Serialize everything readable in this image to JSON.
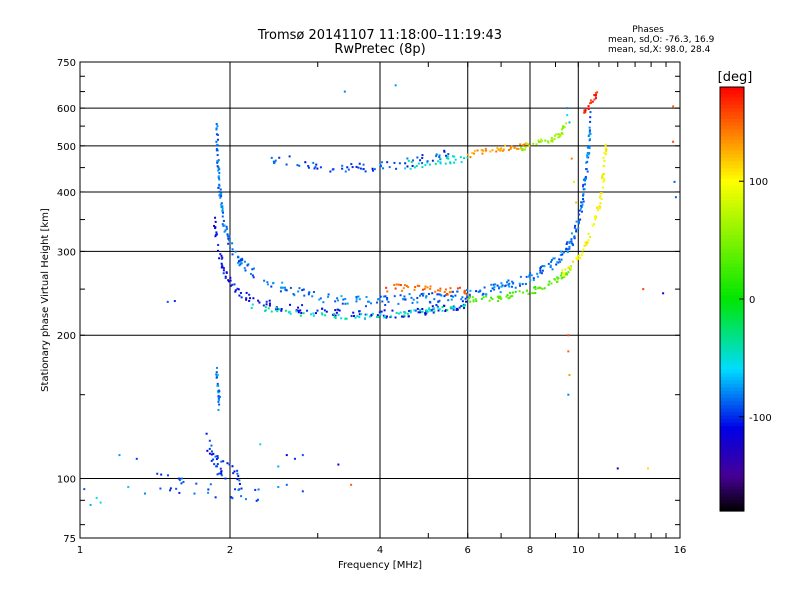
{
  "chart_data": {
    "type": "scatter",
    "title_line1": "Tromsø 20141107 11:18:00–11:19:43",
    "title_line2": "RwPretec (8p)",
    "info": {
      "heading": "Phases",
      "line1": "mean, sd,O: -76.3, 16.9",
      "line2": "mean, sd,X:  98.0, 28.4"
    },
    "xlabel": "Frequency [MHz]",
    "ylabel": "Stationary phase Virtual Height [km]",
    "x_scale": "log",
    "y_scale": "log",
    "xlim": [
      1,
      16
    ],
    "ylim": [
      75,
      750
    ],
    "x_ticks": [
      {
        "value": 1,
        "label": "1"
      },
      {
        "value": 2,
        "label": "2"
      },
      {
        "value": 4,
        "label": "4"
      },
      {
        "value": 6,
        "label": "6"
      },
      {
        "value": 8,
        "label": "8"
      },
      {
        "value": 10,
        "label": "10"
      },
      {
        "value": 16,
        "label": "16"
      }
    ],
    "x_grid": [
      2,
      4,
      6,
      8,
      10
    ],
    "y_ticks": [
      {
        "value": 75,
        "label": "75"
      },
      {
        "value": 100,
        "label": "100"
      },
      {
        "value": 200,
        "label": "200"
      },
      {
        "value": 300,
        "label": "300"
      },
      {
        "value": 400,
        "label": "400"
      },
      {
        "value": 500,
        "label": "500"
      },
      {
        "value": 600,
        "label": "600"
      },
      {
        "value": 750,
        "label": "750"
      }
    ],
    "y_grid": [
      100,
      200,
      300,
      400,
      500,
      600
    ],
    "colorbar": {
      "label": "[deg]",
      "range": [
        -180,
        180
      ],
      "ticks": [
        {
          "value": 100,
          "label": "100"
        },
        {
          "value": 0,
          "label": "0"
        },
        {
          "value": -100,
          "label": "-100"
        }
      ]
    },
    "traces": [
      {
        "name": "",
        "phase": -85,
        "spread_pct": 2.5,
        "density": 14,
        "points": [
          [
            1.88,
            560
          ],
          [
            1.89,
            470
          ],
          [
            1.9,
            420
          ],
          [
            1.92,
            380
          ],
          [
            1.95,
            340
          ],
          [
            2.0,
            310
          ],
          [
            2.1,
            285
          ],
          [
            2.3,
            265
          ],
          [
            2.6,
            250
          ],
          [
            3.0,
            240
          ],
          [
            3.5,
            236
          ],
          [
            4.0,
            236
          ],
          [
            4.5,
            238
          ],
          [
            5.0,
            240
          ],
          [
            5.5,
            242
          ],
          [
            6.0,
            244
          ],
          [
            6.5,
            247
          ],
          [
            7.0,
            252
          ],
          [
            7.6,
            259
          ],
          [
            8.2,
            268
          ],
          [
            8.8,
            280
          ],
          [
            9.3,
            295
          ],
          [
            9.7,
            315
          ],
          [
            10.0,
            345
          ],
          [
            10.2,
            385
          ],
          [
            10.35,
            430
          ],
          [
            10.5,
            490
          ],
          [
            10.6,
            580
          ]
        ]
      },
      {
        "name": "",
        "phase": -110,
        "spread_pct": 2.0,
        "density": 12,
        "points": [
          [
            1.86,
            350
          ],
          [
            1.9,
            300
          ],
          [
            1.95,
            270
          ],
          [
            2.05,
            250
          ],
          [
            2.2,
            238
          ],
          [
            2.5,
            230
          ],
          [
            3.0,
            225
          ],
          [
            3.5,
            221
          ],
          [
            4.0,
            221
          ],
          [
            4.5,
            223
          ],
          [
            5.0,
            226
          ],
          [
            5.5,
            229
          ],
          [
            6.0,
            232
          ]
        ]
      },
      {
        "name": "",
        "phase": -45,
        "spread_pct": 1.2,
        "density": 10,
        "points": [
          [
            2.2,
            230
          ],
          [
            2.6,
            224
          ],
          [
            3.0,
            220
          ],
          [
            3.5,
            219
          ],
          [
            4.0,
            220
          ],
          [
            4.5,
            222
          ],
          [
            5.0,
            225
          ],
          [
            5.5,
            228
          ],
          [
            6.0,
            231
          ]
        ]
      },
      {
        "name": "",
        "phase": 150,
        "spread_pct": 2.0,
        "density": 10,
        "points": [
          [
            4.0,
            252
          ],
          [
            4.5,
            250
          ],
          [
            5.0,
            249
          ],
          [
            5.5,
            248
          ],
          [
            6.0,
            246
          ]
        ]
      },
      {
        "name": "",
        "phase": 30,
        "spread_pct": 1.5,
        "density": 10,
        "points": [
          [
            6.0,
            237
          ],
          [
            6.5,
            238
          ],
          [
            7.0,
            240
          ],
          [
            7.6,
            244
          ],
          [
            8.2,
            249
          ],
          [
            8.8,
            256
          ],
          [
            9.3,
            266
          ],
          [
            9.7,
            276
          ]
        ]
      },
      {
        "name": "",
        "phase": 100,
        "spread_pct": 2.0,
        "density": 10,
        "points": [
          [
            9.3,
            270
          ],
          [
            9.8,
            285
          ],
          [
            10.3,
            305
          ],
          [
            10.7,
            335
          ],
          [
            11.0,
            375
          ],
          [
            11.2,
            420
          ],
          [
            11.3,
            470
          ],
          [
            11.35,
            500
          ]
        ]
      },
      {
        "name": "",
        "phase": -95,
        "spread_pct": 2.5,
        "density": 10,
        "points": [
          [
            2.4,
            470
          ],
          [
            2.8,
            460
          ],
          [
            3.2,
            450
          ],
          [
            3.6,
            447
          ],
          [
            4.0,
            452
          ],
          [
            4.5,
            460
          ],
          [
            5.0,
            470
          ],
          [
            5.5,
            480
          ]
        ]
      },
      {
        "name": "",
        "phase": -50,
        "spread_pct": 2.0,
        "density": 10,
        "points": [
          [
            4.5,
            455
          ],
          [
            5.0,
            460
          ],
          [
            5.5,
            466
          ],
          [
            6.0,
            472
          ]
        ]
      },
      {
        "name": "",
        "phase": 130,
        "spread_pct": 1.5,
        "density": 10,
        "points": [
          [
            6.0,
            478
          ],
          [
            6.5,
            486
          ],
          [
            7.0,
            492
          ],
          [
            7.5,
            496
          ],
          [
            8.0,
            500
          ]
        ]
      },
      {
        "name": "",
        "phase": 60,
        "spread_pct": 1.5,
        "density": 10,
        "points": [
          [
            7.6,
            495
          ],
          [
            8.2,
            505
          ],
          [
            8.8,
            515
          ],
          [
            9.2,
            530
          ],
          [
            9.5,
            560
          ]
        ]
      },
      {
        "name": "",
        "phase": 170,
        "spread_pct": 1.5,
        "density": 10,
        "points": [
          [
            10.3,
            590
          ],
          [
            10.6,
            615
          ],
          [
            10.9,
            640
          ]
        ]
      },
      {
        "name": "",
        "phase": -100,
        "spread_pct": 4.0,
        "density": 10,
        "points": [
          [
            1.8,
            120
          ],
          [
            1.85,
            110
          ],
          [
            1.9,
            106
          ],
          [
            2.0,
            103
          ],
          [
            2.1,
            101
          ]
        ]
      },
      {
        "name": "",
        "phase": -90,
        "spread_pct": 4.0,
        "density": 6,
        "points": [
          [
            1.4,
            100
          ],
          [
            1.55,
            97
          ],
          [
            1.7,
            95
          ],
          [
            1.9,
            94
          ],
          [
            2.1,
            93
          ],
          [
            2.3,
            92
          ]
        ]
      },
      {
        "name": "",
        "phase": -80,
        "spread_pct": 4.0,
        "density": 8,
        "points": [
          [
            1.88,
            175
          ],
          [
            1.89,
            162
          ],
          [
            1.9,
            150
          ],
          [
            1.9,
            140
          ]
        ]
      }
    ],
    "scatter": [
      [
        1.05,
        88,
        -70
      ],
      [
        1.08,
        91,
        -60
      ],
      [
        1.1,
        89,
        -55
      ],
      [
        1.02,
        95,
        -90
      ],
      [
        1.2,
        112,
        -75
      ],
      [
        1.3,
        110,
        -95
      ],
      [
        1.25,
        96,
        -65
      ],
      [
        1.35,
        93,
        -80
      ],
      [
        1.5,
        235,
        -90
      ],
      [
        1.55,
        236,
        -100
      ],
      [
        1.6,
        100,
        -85
      ],
      [
        2.5,
        106,
        -70
      ],
      [
        2.6,
        112,
        -110
      ],
      [
        2.7,
        110,
        -100
      ],
      [
        2.8,
        112,
        -90
      ],
      [
        2.3,
        118,
        -60
      ],
      [
        2.5,
        96,
        -75
      ],
      [
        2.6,
        97,
        -85
      ],
      [
        2.8,
        94,
        -95
      ],
      [
        3.3,
        107,
        -120
      ],
      [
        3.5,
        97,
        150
      ],
      [
        3.4,
        650,
        -80
      ],
      [
        4.3,
        670,
        -75
      ],
      [
        9.5,
        600,
        -80
      ],
      [
        9.5,
        580,
        -60
      ],
      [
        9.6,
        560,
        -70
      ],
      [
        9.55,
        200,
        160
      ],
      [
        9.55,
        185,
        150
      ],
      [
        9.6,
        165,
        130
      ],
      [
        9.55,
        150,
        -80
      ],
      [
        9.7,
        470,
        140
      ],
      [
        9.8,
        420,
        80
      ],
      [
        9.9,
        380,
        120
      ],
      [
        13.5,
        250,
        160
      ],
      [
        15.5,
        605,
        150
      ],
      [
        15.5,
        510,
        160
      ],
      [
        15.6,
        420,
        -90
      ],
      [
        15.7,
        390,
        -90
      ],
      [
        12.0,
        105,
        -110
      ],
      [
        13.8,
        105,
        110
      ],
      [
        14.8,
        245,
        -120
      ]
    ]
  }
}
